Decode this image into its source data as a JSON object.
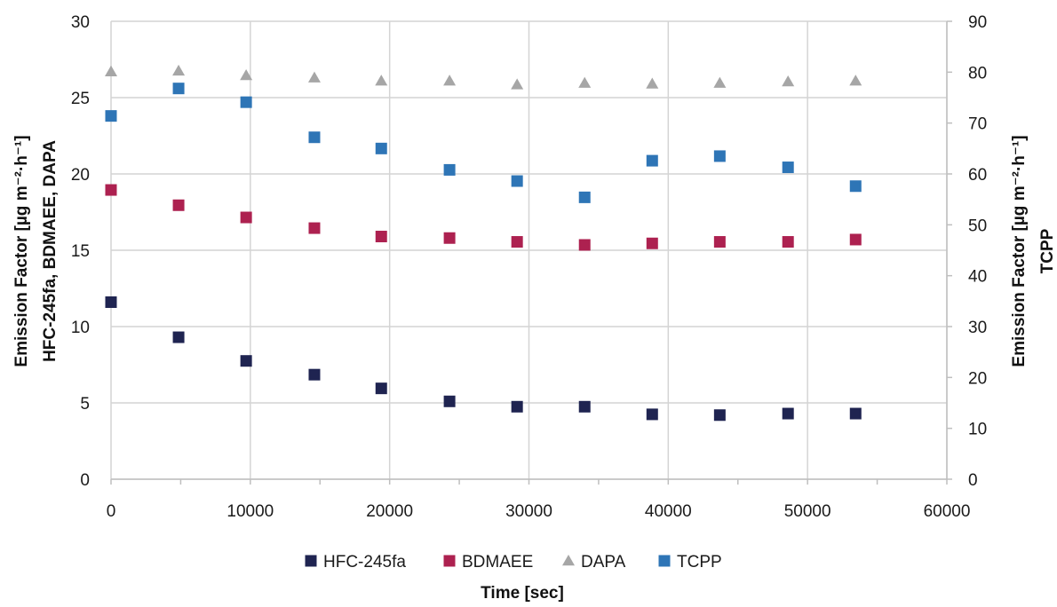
{
  "chart_data": {
    "type": "scatter",
    "xlabel": "Time [sec]",
    "ylabel_left": [
      "Emission Factor [µg m⁻²·h⁻¹]",
      "HFC-245fa, BDMAEE, DAPA"
    ],
    "ylabel_right": [
      "Emission Factor [µg m⁻²·h⁻¹]",
      "TCPP"
    ],
    "xlim": [
      0,
      60000
    ],
    "xticks": [
      0,
      10000,
      20000,
      30000,
      40000,
      50000,
      60000
    ],
    "ylim_left": [
      0,
      30
    ],
    "yticks_left": [
      0,
      5,
      10,
      15,
      20,
      25,
      30
    ],
    "ylim_right": [
      0,
      90
    ],
    "yticks_right": [
      0,
      10,
      20,
      30,
      40,
      50,
      60,
      70,
      80,
      90
    ],
    "grid": true,
    "legend_position": "bottom",
    "series": [
      {
        "name": "HFC-245fa",
        "axis": "left",
        "marker": "square",
        "color": "#1f2451",
        "x": [
          0,
          4850,
          9700,
          14600,
          19400,
          24300,
          29150,
          34000,
          38850,
          43700,
          48600,
          53450
        ],
        "y": [
          11.6,
          9.3,
          7.75,
          6.85,
          5.95,
          5.1,
          4.75,
          4.75,
          4.25,
          4.2,
          4.3,
          4.3
        ]
      },
      {
        "name": "BDMAEE",
        "axis": "left",
        "marker": "square",
        "color": "#ad2150",
        "x": [
          0,
          4850,
          9700,
          14600,
          19400,
          24300,
          29150,
          34000,
          38850,
          43700,
          48600,
          53450
        ],
        "y": [
          18.95,
          17.95,
          17.15,
          16.45,
          15.9,
          15.8,
          15.55,
          15.35,
          15.45,
          15.55,
          15.55,
          15.7
        ]
      },
      {
        "name": "DAPA",
        "axis": "left",
        "marker": "triangle",
        "color": "#a6a6a6",
        "x": [
          0,
          4850,
          9700,
          14600,
          19400,
          24300,
          29150,
          34000,
          38850,
          43700,
          48600,
          53450
        ],
        "y": [
          26.7,
          26.75,
          26.45,
          26.3,
          26.1,
          26.1,
          25.85,
          25.95,
          25.9,
          25.95,
          26.05,
          26.1
        ]
      },
      {
        "name": "TCPP",
        "axis": "right",
        "marker": "square",
        "color": "#2e75b6",
        "x": [
          0,
          4850,
          9700,
          14600,
          19400,
          24300,
          29150,
          34000,
          38850,
          43700,
          48600,
          53450
        ],
        "y": [
          71.4,
          76.8,
          74.1,
          67.2,
          65.0,
          60.8,
          58.6,
          55.4,
          62.6,
          63.5,
          61.3,
          57.6
        ]
      }
    ]
  }
}
